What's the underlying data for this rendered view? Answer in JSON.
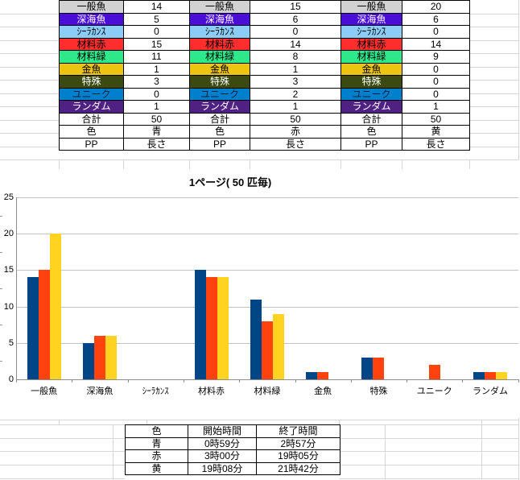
{
  "top_table": {
    "rows": [
      {
        "label": "一般魚",
        "bg": "#d2d2d2",
        "fg": "#000000",
        "values": [
          "14",
          "15",
          "20"
        ]
      },
      {
        "label": "深海魚",
        "bg": "#4a0dd8",
        "fg": "#ffffff",
        "values": [
          "5",
          "6",
          "6"
        ]
      },
      {
        "label": "ｼｰﾗｶﾝｽ",
        "bg": "#8ccdf7",
        "fg": "#000000",
        "values": [
          "0",
          "0",
          "0"
        ]
      },
      {
        "label": "材料赤",
        "bg": "#ff2e2e",
        "fg": "#000000",
        "values": [
          "15",
          "14",
          "14"
        ]
      },
      {
        "label": "材料緑",
        "bg": "#2de98c",
        "fg": "#000000",
        "values": [
          "11",
          "8",
          "9"
        ]
      },
      {
        "label": "金魚",
        "bg": "#edc511",
        "fg": "#000000",
        "values": [
          "1",
          "1",
          "0"
        ]
      },
      {
        "label": "特殊",
        "bg": "#3a4a11",
        "fg": "#ffffff",
        "values": [
          "3",
          "3",
          "0"
        ]
      },
      {
        "label": "ユニーク",
        "bg": "#0080cc",
        "fg": "#00203d",
        "values": [
          "0",
          "2",
          "0"
        ]
      },
      {
        "label": "ランダム",
        "bg": "#4f2183",
        "fg": "#ffffff",
        "values": [
          "1",
          "1",
          "1"
        ]
      },
      {
        "label": "合計",
        "bg": "#ffffff",
        "fg": "#000000",
        "values": [
          "50",
          "50",
          "50"
        ]
      },
      {
        "label": "色",
        "bg": "#ffffff",
        "fg": "#000000",
        "values": [
          "青",
          "赤",
          "黄"
        ]
      },
      {
        "label": "PP",
        "bg": "#ffffff",
        "fg": "#000000",
        "values": [
          "長さ",
          "長さ",
          "長さ"
        ]
      }
    ]
  },
  "chart_data": {
    "type": "bar",
    "title": "1ページ( 50 匹毎)",
    "categories": [
      "一般魚",
      "深海魚",
      "ｼｰﾗｶﾝｽ",
      "材料赤",
      "材料緑",
      "金魚",
      "特殊",
      "ユニーク",
      "ランダム"
    ],
    "series": [
      {
        "name": "青",
        "color": "#004586",
        "values": [
          14,
          5,
          0,
          15,
          11,
          1,
          3,
          0,
          1
        ]
      },
      {
        "name": "赤",
        "color": "#ff420e",
        "values": [
          15,
          6,
          0,
          14,
          8,
          1,
          3,
          2,
          1
        ]
      },
      {
        "name": "黄",
        "color": "#ffd320",
        "values": [
          20,
          6,
          0,
          14,
          9,
          0,
          0,
          0,
          1
        ]
      }
    ],
    "xlabel": "",
    "ylabel": "",
    "ylim": [
      0,
      25
    ],
    "yticks": [
      0,
      5,
      10,
      15,
      20,
      25
    ],
    "grid": true,
    "legend_position": "none"
  },
  "bottom_table": {
    "headers": [
      "色",
      "開始時間",
      "終了時間"
    ],
    "rows": [
      {
        "color": "青",
        "start": "0時59分",
        "end": "2時57分"
      },
      {
        "color": "赤",
        "start": "3時00分",
        "end": "19時05分"
      },
      {
        "color": "黄",
        "start": "19時08分",
        "end": "21時42分"
      }
    ]
  }
}
